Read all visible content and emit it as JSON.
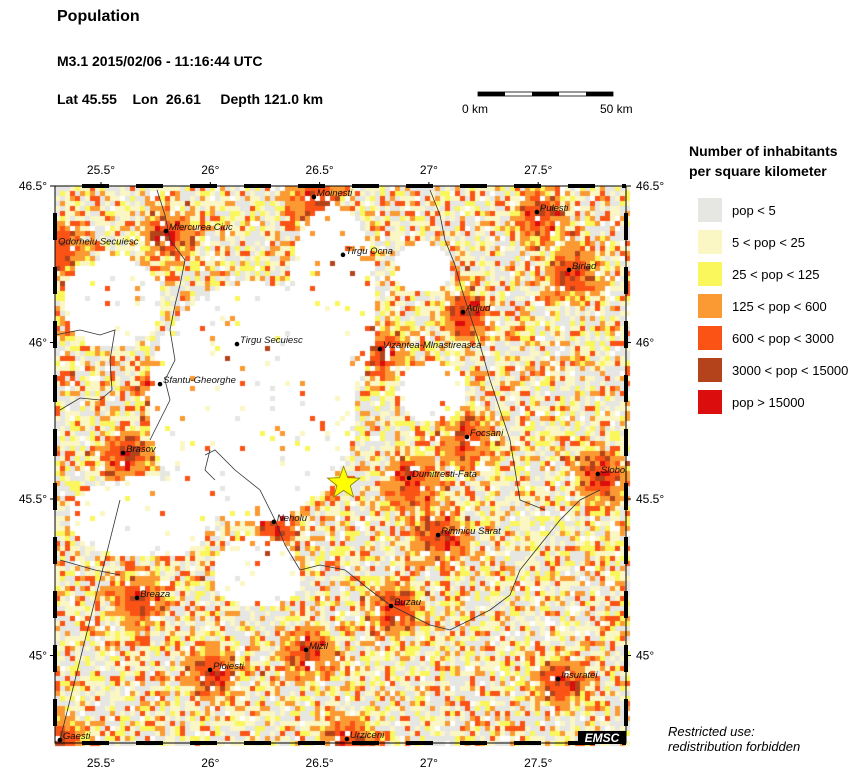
{
  "header": {
    "title": "Population",
    "event": "M3.1  2015/02/06 - 11:16:44 UTC",
    "location": "Lat 45.55    Lon  26.61     Depth 121.0 km"
  },
  "scale_bar": {
    "start_label": "0 km",
    "end_label": "50 km"
  },
  "map": {
    "lon_ticks": [
      {
        "value": 25.5,
        "label": "25.5°"
      },
      {
        "value": 26,
        "label": "26°"
      },
      {
        "value": 26.5,
        "label": "26.5°"
      },
      {
        "value": 27,
        "label": "27°"
      },
      {
        "value": 27.5,
        "label": "27.5°"
      }
    ],
    "lat_ticks": [
      {
        "value": 46.5,
        "label": "46.5°"
      },
      {
        "value": 46,
        "label": "46°"
      },
      {
        "value": 45.5,
        "label": "45.5°"
      },
      {
        "value": 45,
        "label": "45°"
      }
    ],
    "epicenter": {
      "lat": 45.55,
      "lon": 26.61,
      "color": "#ffff00",
      "icon": "star-icon"
    },
    "cities": [
      {
        "name": "Moinesti",
        "lon": 26.474,
        "lat": 46.465
      },
      {
        "name": "Miercurea Ciuc",
        "lon": 25.797,
        "lat": 46.356
      },
      {
        "name": "Odorheiu Secuiesc",
        "lon": 25.29,
        "lat": 46.31
      },
      {
        "name": "Tirgu Ocna",
        "lon": 26.607,
        "lat": 46.28
      },
      {
        "name": "Pulesti",
        "lon": 27.494,
        "lat": 46.417
      },
      {
        "name": "Birlad",
        "lon": 27.641,
        "lat": 46.232
      },
      {
        "name": "Adjud",
        "lon": 27.156,
        "lat": 46.097
      },
      {
        "name": "Tirgu Secuiesc",
        "lon": 26.122,
        "lat": 45.995
      },
      {
        "name": "Vizantea-Mlnastireasca",
        "lon": 26.776,
        "lat": 45.979
      },
      {
        "name": "Sfantu-Gheorghe",
        "lon": 25.77,
        "lat": 45.867
      },
      {
        "name": "Focsani",
        "lon": 27.174,
        "lat": 45.698
      },
      {
        "name": "Brasov",
        "lon": 25.601,
        "lat": 45.647
      },
      {
        "name": "Slobo",
        "lon": 27.773,
        "lat": 45.58
      },
      {
        "name": "Dumitresti-Fata",
        "lon": 26.909,
        "lat": 45.567
      },
      {
        "name": "Neholu",
        "lon": 26.291,
        "lat": 45.427
      },
      {
        "name": "Rimnicu Sarat",
        "lon": 27.042,
        "lat": 45.385
      },
      {
        "name": "Breaza",
        "lon": 25.665,
        "lat": 45.184
      },
      {
        "name": "Buzau",
        "lon": 26.827,
        "lat": 45.158
      },
      {
        "name": "Mizil",
        "lon": 26.438,
        "lat": 45.018
      },
      {
        "name": "Ploiesti",
        "lon": 25.999,
        "lat": 44.954
      },
      {
        "name": "Insuratei",
        "lon": 27.591,
        "lat": 44.925
      },
      {
        "name": "Gaesti",
        "lon": 25.312,
        "lat": 44.73
      },
      {
        "name": "Urziceni",
        "lon": 26.625,
        "lat": 44.733
      }
    ],
    "logo": "EMSC"
  },
  "legend": {
    "title_line1": "Number of inhabitants",
    "title_line2": "per square kilometer",
    "items": [
      {
        "label": "pop < 5",
        "color": "#e6e6e3"
      },
      {
        "label": "5 < pop < 25",
        "color": "#fbf7c4"
      },
      {
        "label": "25 < pop < 125",
        "color": "#faf75c"
      },
      {
        "label": "125 < pop < 600",
        "color": "#fb9a33"
      },
      {
        "label": "600 < pop < 3000",
        "color": "#fb5316"
      },
      {
        "label": "3000 < pop < 15000",
        "color": "#b4421a"
      },
      {
        "label": "pop > 15000",
        "color": "#db0d0d"
      }
    ]
  },
  "footer": {
    "restricted_line1": "Restricted use:",
    "restricted_line2": "redistribution forbidden"
  }
}
